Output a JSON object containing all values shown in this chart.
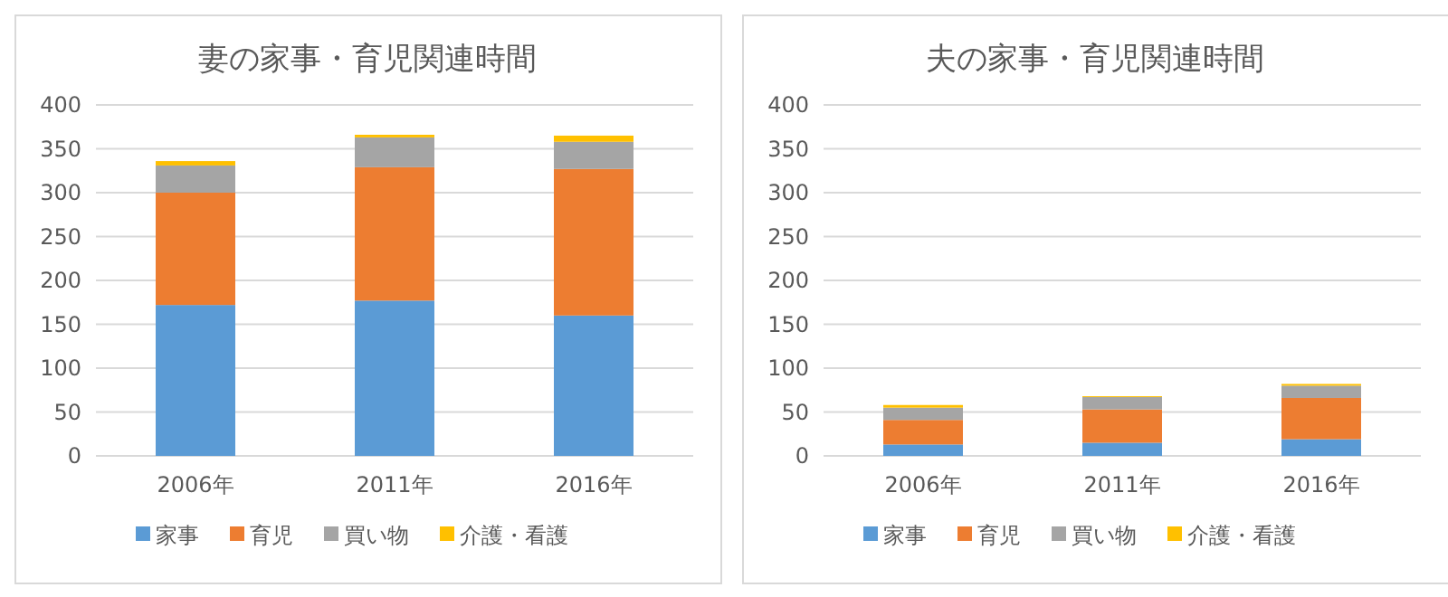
{
  "chart_data": [
    {
      "type": "bar",
      "title": "妻の家事・育児関連時間",
      "categories": [
        "2006年",
        "2011年",
        "2016年"
      ],
      "stacked": true,
      "series": [
        {
          "name": "家事",
          "color": "#5b9bd5",
          "values": [
            172,
            177,
            160
          ]
        },
        {
          "name": "育児",
          "color": "#ed7d31",
          "values": [
            128,
            152,
            167
          ]
        },
        {
          "name": "買い物",
          "color": "#a5a5a5",
          "values": [
            31,
            34,
            31
          ]
        },
        {
          "name": "介護・看護",
          "color": "#ffc000",
          "values": [
            5,
            3,
            7
          ]
        }
      ],
      "ylim": [
        0,
        400
      ],
      "yticks": [
        0,
        50,
        100,
        150,
        200,
        250,
        300,
        350,
        400
      ],
      "grid": "y",
      "legend": "bottom"
    },
    {
      "type": "bar",
      "title": "夫の家事・育児関連時間",
      "categories": [
        "2006年",
        "2011年",
        "2016年"
      ],
      "stacked": true,
      "series": [
        {
          "name": "家事",
          "color": "#5b9bd5",
          "values": [
            13,
            15,
            19
          ]
        },
        {
          "name": "育児",
          "color": "#ed7d31",
          "values": [
            28,
            38,
            47
          ]
        },
        {
          "name": "買い物",
          "color": "#a5a5a5",
          "values": [
            14,
            14,
            14
          ]
        },
        {
          "name": "介護・看護",
          "color": "#ffc000",
          "values": [
            3,
            1,
            2
          ]
        }
      ],
      "ylim": [
        0,
        400
      ],
      "yticks": [
        0,
        50,
        100,
        150,
        200,
        250,
        300,
        350,
        400
      ],
      "grid": "y",
      "legend": "bottom"
    }
  ]
}
